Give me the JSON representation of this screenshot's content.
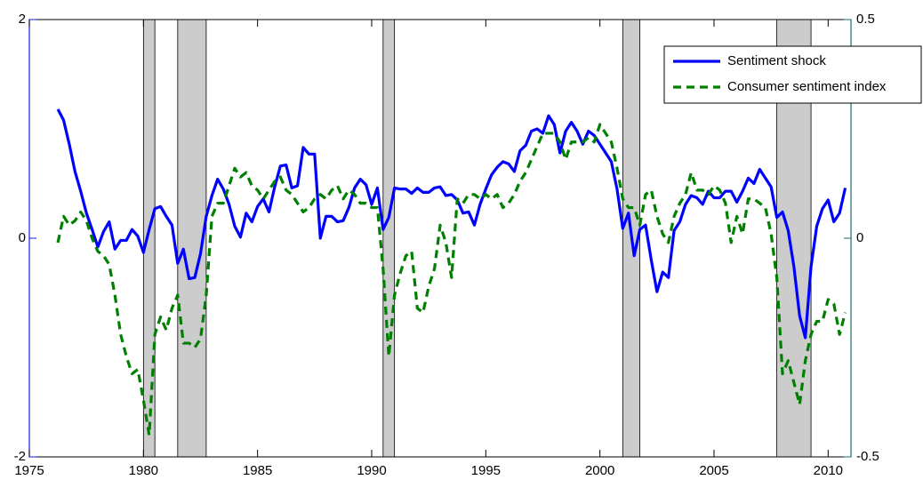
{
  "chart_data": {
    "type": "line",
    "xlim": [
      1975,
      2011
    ],
    "xticks": [
      1975,
      1980,
      1985,
      1990,
      1995,
      2000,
      2005,
      2010
    ],
    "ylim": [
      -2,
      2
    ],
    "yticks": [
      -2,
      0,
      2
    ],
    "y_color": "#1a1adb",
    "y2lim": [
      -0.5,
      0.5
    ],
    "y2ticks": [
      -0.5,
      0,
      0.5
    ],
    "y2_color": "#1b6b6b",
    "legend": "upper right",
    "recession_color": "#cccccc",
    "recessions": [
      [
        1980.0,
        1980.5
      ],
      [
        1981.5,
        1982.75
      ],
      [
        1990.5,
        1991.0
      ],
      [
        2001.0,
        2001.75
      ],
      [
        2007.75,
        2009.25
      ]
    ],
    "x": [
      1976.25,
      1976.5,
      1976.75,
      1977,
      1977.25,
      1977.5,
      1977.75,
      1978,
      1978.25,
      1978.5,
      1978.75,
      1979,
      1979.25,
      1979.5,
      1979.75,
      1980,
      1980.25,
      1980.5,
      1980.75,
      1981,
      1981.25,
      1981.5,
      1981.75,
      1982,
      1982.25,
      1982.5,
      1982.75,
      1983,
      1983.25,
      1983.5,
      1983.75,
      1984,
      1984.25,
      1984.5,
      1984.75,
      1985,
      1985.25,
      1985.5,
      1985.75,
      1986,
      1986.25,
      1986.5,
      1986.75,
      1987,
      1987.25,
      1987.5,
      1987.75,
      1988,
      1988.25,
      1988.5,
      1988.75,
      1989,
      1989.25,
      1989.5,
      1989.75,
      1990,
      1990.25,
      1990.5,
      1990.75,
      1991,
      1991.25,
      1991.5,
      1991.75,
      1992,
      1992.25,
      1992.5,
      1992.75,
      1993,
      1993.25,
      1993.5,
      1993.75,
      1994,
      1994.25,
      1994.5,
      1994.75,
      1995,
      1995.25,
      1995.5,
      1995.75,
      1996,
      1996.25,
      1996.5,
      1996.75,
      1997,
      1997.25,
      1997.5,
      1997.75,
      1998,
      1998.25,
      1998.5,
      1998.75,
      1999,
      1999.25,
      1999.5,
      1999.75,
      2000,
      2000.25,
      2000.5,
      2000.75,
      2001,
      2001.25,
      2001.5,
      2001.75,
      2002,
      2002.25,
      2002.5,
      2002.75,
      2003,
      2003.25,
      2003.5,
      2003.75,
      2004,
      2004.25,
      2004.5,
      2004.75,
      2005,
      2005.25,
      2005.5,
      2005.75,
      2006,
      2006.25,
      2006.5,
      2006.75,
      2007,
      2007.25,
      2007.5,
      2007.75,
      2008,
      2008.25,
      2008.5,
      2008.75,
      2009,
      2009.25,
      2009.5,
      2009.75,
      2010,
      2010.25,
      2010.5,
      2010.75
    ],
    "series": [
      {
        "name": "Sentiment shock",
        "color": "#0000ff",
        "dash": false,
        "values": [
          1.18,
          1.08,
          0.86,
          0.61,
          0.43,
          0.23,
          0.08,
          -0.08,
          0.06,
          0.15,
          -0.1,
          -0.02,
          -0.02,
          0.08,
          0.02,
          -0.13,
          0.08,
          0.27,
          0.29,
          0.2,
          0.12,
          -0.23,
          -0.1,
          -0.37,
          -0.36,
          -0.14,
          0.2,
          0.39,
          0.54,
          0.45,
          0.31,
          0.11,
          0.01,
          0.23,
          0.15,
          0.29,
          0.36,
          0.24,
          0.47,
          0.66,
          0.67,
          0.46,
          0.48,
          0.83,
          0.77,
          0.77,
          0.0,
          0.2,
          0.2,
          0.15,
          0.16,
          0.28,
          0.46,
          0.54,
          0.49,
          0.31,
          0.46,
          0.08,
          0.19,
          0.46,
          0.45,
          0.45,
          0.41,
          0.46,
          0.42,
          0.42,
          0.46,
          0.47,
          0.39,
          0.4,
          0.35,
          0.23,
          0.24,
          0.12,
          0.31,
          0.45,
          0.58,
          0.65,
          0.7,
          0.68,
          0.61,
          0.8,
          0.85,
          0.98,
          1.0,
          0.96,
          1.12,
          1.04,
          0.78,
          0.98,
          1.06,
          0.98,
          0.86,
          0.98,
          0.94,
          0.86,
          0.78,
          0.7,
          0.45,
          0.09,
          0.23,
          -0.16,
          0.08,
          0.12,
          -0.2,
          -0.49,
          -0.31,
          -0.36,
          0.07,
          0.15,
          0.31,
          0.39,
          0.37,
          0.31,
          0.43,
          0.37,
          0.37,
          0.43,
          0.43,
          0.33,
          0.43,
          0.55,
          0.5,
          0.63,
          0.55,
          0.47,
          0.19,
          0.24,
          0.07,
          -0.26,
          -0.71,
          -0.91,
          -0.26,
          0.11,
          0.27,
          0.35,
          0.15,
          0.23,
          0.46
        ]
      },
      {
        "name": "Consumer sentiment index",
        "color": "#008000",
        "dash": true,
        "axis": "y2",
        "values": [
          -0.01,
          0.05,
          0.03,
          0.04,
          0.06,
          0.04,
          0.0,
          -0.03,
          -0.04,
          -0.06,
          -0.13,
          -0.22,
          -0.27,
          -0.31,
          -0.3,
          -0.37,
          -0.45,
          -0.22,
          -0.18,
          -0.21,
          -0.16,
          -0.13,
          -0.24,
          -0.24,
          -0.25,
          -0.23,
          -0.13,
          0.05,
          0.08,
          0.08,
          0.12,
          0.16,
          0.14,
          0.15,
          0.12,
          0.11,
          0.09,
          0.11,
          0.13,
          0.14,
          0.11,
          0.1,
          0.08,
          0.06,
          0.07,
          0.09,
          0.1,
          0.09,
          0.11,
          0.12,
          0.09,
          0.11,
          0.1,
          0.08,
          0.08,
          0.07,
          0.07,
          -0.07,
          -0.27,
          -0.13,
          -0.08,
          -0.04,
          -0.03,
          -0.16,
          -0.17,
          -0.11,
          -0.07,
          0.03,
          -0.01,
          -0.09,
          0.09,
          0.08,
          0.1,
          0.1,
          0.09,
          0.1,
          0.09,
          0.1,
          0.07,
          0.08,
          0.1,
          0.13,
          0.15,
          0.18,
          0.21,
          0.24,
          0.24,
          0.24,
          0.22,
          0.18,
          0.22,
          0.22,
          0.22,
          0.23,
          0.22,
          0.26,
          0.24,
          0.22,
          0.16,
          0.09,
          0.07,
          0.07,
          0.03,
          0.1,
          0.11,
          0.05,
          0.01,
          -0.01,
          0.05,
          0.08,
          0.1,
          0.15,
          0.11,
          0.11,
          0.1,
          0.12,
          0.11,
          0.08,
          -0.01,
          0.05,
          0.01,
          0.09,
          0.09,
          0.08,
          0.07,
          0.01,
          -0.09,
          -0.31,
          -0.28,
          -0.33,
          -0.38,
          -0.28,
          -0.22,
          -0.19,
          -0.19,
          -0.14,
          -0.15,
          -0.22,
          -0.17
        ]
      }
    ]
  }
}
